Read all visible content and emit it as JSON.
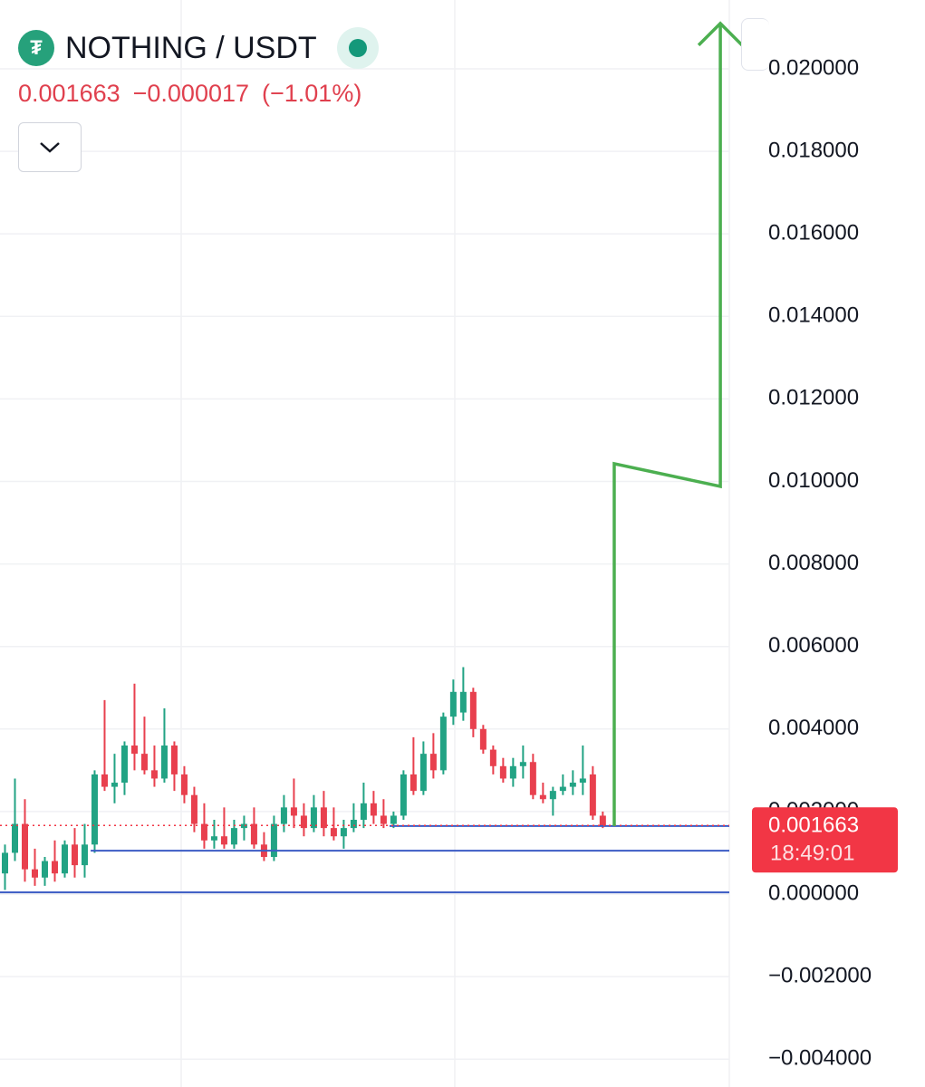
{
  "header": {
    "symbol": "NOTHING / USDT",
    "last": "0.001663",
    "change": "−0.000017",
    "change_pct": "(−1.01%)"
  },
  "chart_data": {
    "type": "candlestick",
    "up_color": "#22a384",
    "down_color": "#e8404e",
    "xlim": [
      -0.5,
      72.7
    ],
    "ylim": [
      -0.004676,
      0.021668
    ],
    "yticks": [
      {
        "value": -0.004,
        "label": "−0.004000"
      },
      {
        "value": -0.002,
        "label": "−0.002000"
      },
      {
        "value": 0,
        "label": "0.000000"
      },
      {
        "value": 0.002,
        "label": "0.002000"
      },
      {
        "value": 0.004,
        "label": "0.004000"
      },
      {
        "value": 0.006,
        "label": "0.006000"
      },
      {
        "value": 0.008,
        "label": "0.008000"
      },
      {
        "value": 0.01,
        "label": "0.010000"
      },
      {
        "value": 0.012,
        "label": "0.012000"
      },
      {
        "value": 0.014,
        "label": "0.014000"
      },
      {
        "value": 0.016,
        "label": "0.016000"
      },
      {
        "value": 0.018,
        "label": "0.018000"
      },
      {
        "value": 0.02,
        "label": "0.020000"
      }
    ],
    "grid": true,
    "open": [
      0.0005,
      0.001,
      0.0017,
      0.0006,
      0.0004,
      0.0008,
      0.0005,
      0.0012,
      0.0007,
      0.0012,
      0.0029,
      0.0026,
      0.0027,
      0.0036,
      0.0034,
      0.003,
      0.0028,
      0.0036,
      0.0029,
      0.0024,
      0.0017,
      0.0013,
      0.0014,
      0.0012,
      0.0016,
      0.0017,
      0.0012,
      0.0009,
      0.0017,
      0.0021,
      0.0019,
      0.0016,
      0.0021,
      0.0016,
      0.0014,
      0.0016,
      0.0018,
      0.0022,
      0.0019,
      0.0017,
      0.0019,
      0.0029,
      0.0025,
      0.0034,
      0.003,
      0.0043,
      0.0044,
      0.0049,
      0.004,
      0.0035,
      0.0031,
      0.0028,
      0.0031,
      0.0032,
      0.0024,
      0.0023,
      0.0025,
      0.0026,
      0.0027,
      0.0029,
      0.0019
    ],
    "high": [
      0.0012,
      0.0028,
      0.0023,
      0.0011,
      0.0009,
      0.0013,
      0.0013,
      0.0016,
      0.0017,
      0.003,
      0.0047,
      0.0034,
      0.0037,
      0.0051,
      0.0043,
      0.0036,
      0.0045,
      0.0037,
      0.0031,
      0.0026,
      0.0022,
      0.0018,
      0.0021,
      0.0018,
      0.0019,
      0.0021,
      0.0015,
      0.0019,
      0.0024,
      0.0028,
      0.0022,
      0.0024,
      0.0025,
      0.0021,
      0.0018,
      0.0022,
      0.0027,
      0.0025,
      0.0023,
      0.002,
      0.003,
      0.0038,
      0.0037,
      0.0039,
      0.0044,
      0.0052,
      0.0055,
      0.005,
      0.0041,
      0.0036,
      0.0033,
      0.0033,
      0.0036,
      0.0034,
      0.0027,
      0.0026,
      0.0029,
      0.003,
      0.0036,
      0.0031,
      0.002
    ],
    "low": [
      0.0001,
      0.0008,
      0.0003,
      0.0002,
      0.0002,
      0.0003,
      0.0004,
      0.0004,
      0.0004,
      0.001,
      0.0025,
      0.0022,
      0.0024,
      0.003,
      0.0029,
      0.0026,
      0.0027,
      0.0025,
      0.0022,
      0.0015,
      0.0011,
      0.0011,
      0.0011,
      0.0011,
      0.0013,
      0.0011,
      0.0008,
      0.0008,
      0.0015,
      0.0016,
      0.0014,
      0.0015,
      0.0014,
      0.0013,
      0.0011,
      0.0015,
      0.0016,
      0.0017,
      0.0016,
      0.0016,
      0.0018,
      0.0024,
      0.0024,
      0.0028,
      0.0029,
      0.0041,
      0.0042,
      0.0038,
      0.0034,
      0.0029,
      0.0027,
      0.0026,
      0.0028,
      0.0023,
      0.0022,
      0.0019,
      0.0024,
      0.0024,
      0.0024,
      0.0018,
      0.0016
    ],
    "close": [
      0.001,
      0.0017,
      0.0006,
      0.0004,
      0.0008,
      0.0005,
      0.0012,
      0.0007,
      0.0012,
      0.0029,
      0.0026,
      0.0027,
      0.0036,
      0.0034,
      0.003,
      0.0028,
      0.0036,
      0.0029,
      0.0024,
      0.0017,
      0.0013,
      0.0014,
      0.0012,
      0.0016,
      0.0017,
      0.0012,
      0.0009,
      0.0017,
      0.0021,
      0.0019,
      0.0016,
      0.0021,
      0.0016,
      0.0014,
      0.0016,
      0.0018,
      0.0022,
      0.0019,
      0.0017,
      0.0019,
      0.0029,
      0.0025,
      0.0034,
      0.003,
      0.0043,
      0.0049,
      0.0049,
      0.004,
      0.0035,
      0.0031,
      0.0028,
      0.0031,
      0.0032,
      0.0024,
      0.0023,
      0.0025,
      0.0026,
      0.0027,
      0.0028,
      0.0019,
      0.001663
    ],
    "hlines": {
      "color": "#3b5bc4",
      "values": [
        0.00165,
        0.00105,
        4e-05
      ],
      "x_start": [
        38.6,
        8.6,
        -0.5
      ]
    },
    "arrow": {
      "color": "#4caf50",
      "x": [
        61.15,
        61.15,
        71.8,
        71.8
      ],
      "values": [
        0.00165,
        0.01043,
        0.00988,
        0.0211
      ]
    },
    "price_label": {
      "value": "0.001663",
      "countdown": "18:49:01",
      "color": "#f23645"
    }
  }
}
